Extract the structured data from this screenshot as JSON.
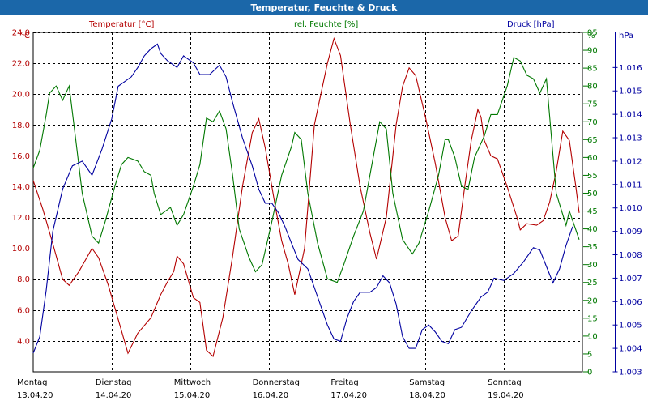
{
  "window": {
    "title": "Temperatur, Feuchte & Druck"
  },
  "colors": {
    "temperature": "#b40000",
    "humidity": "#007800",
    "pressure": "#0000a0",
    "titlebar": "#1b67a9",
    "grid": "#000000"
  },
  "chart_data": {
    "type": "line",
    "title": "Temperatur, Feuchte & Druck",
    "grid": true,
    "x": {
      "range": [
        "13.04.20 00:00",
        "20.04.20 00:00"
      ],
      "labels": [
        {
          "day": "Montag",
          "date": "13.04.20"
        },
        {
          "day": "Dienstag",
          "date": "14.04.20"
        },
        {
          "day": "Mittwoch",
          "date": "15.04.20"
        },
        {
          "day": "Donnerstag",
          "date": "16.04.20"
        },
        {
          "day": "Freitag",
          "date": "17.04.20"
        },
        {
          "day": "Samstag",
          "date": "18.04.20"
        },
        {
          "day": "Sonntag",
          "date": "19.04.20"
        }
      ]
    },
    "axes": {
      "temperature": {
        "unit": "°C",
        "ylim": [
          2.0,
          24.0
        ],
        "ticks": [
          "4.0",
          "6.0",
          "8.0",
          "10.0",
          "12.0",
          "14.0",
          "16.0",
          "18.0",
          "20.0",
          "22.0",
          "24.0"
        ]
      },
      "humidity": {
        "unit": "%",
        "ylim": [
          0,
          95
        ],
        "ticks": [
          "0",
          "5",
          "10",
          "15",
          "20",
          "25",
          "30",
          "35",
          "40",
          "45",
          "50",
          "55",
          "60",
          "65",
          "70",
          "75",
          "80",
          "85",
          "90",
          "95"
        ]
      },
      "pressure": {
        "unit": "hPa",
        "ylim": [
          1.003,
          1.0175
        ],
        "ticks": [
          "1.003",
          "1.004",
          "1.005",
          "1.006",
          "1.007",
          "1.008",
          "1.009",
          "1.010",
          "1.011",
          "1.012",
          "1.013",
          "1.014",
          "1.015",
          "1.016"
        ]
      }
    },
    "series": [
      {
        "name": "Temperatur [°C]",
        "axis": "temperature",
        "points": [
          [
            "13.04.20 00:00",
            14.4
          ],
          [
            "13.04.20 03:00",
            12.5
          ],
          [
            "13.04.20 06:00",
            10.3
          ],
          [
            "13.04.20 09:00",
            8.0
          ],
          [
            "13.04.20 11:00",
            7.6
          ],
          [
            "13.04.20 14:00",
            8.5
          ],
          [
            "13.04.20 18:00",
            10.0
          ],
          [
            "13.04.20 20:00",
            9.4
          ],
          [
            "13.04.20 23:00",
            7.6
          ],
          [
            "14.04.20 02:00",
            5.4
          ],
          [
            "14.04.20 05:00",
            3.2
          ],
          [
            "14.04.20 08:00",
            4.5
          ],
          [
            "14.04.20 12:00",
            5.5
          ],
          [
            "14.04.20 15:00",
            7.0
          ],
          [
            "14.04.20 17:00",
            7.8
          ],
          [
            "14.04.20 19:00",
            8.5
          ],
          [
            "14.04.20 20:00",
            9.5
          ],
          [
            "14.04.20 22:00",
            9.0
          ],
          [
            "15.04.20 01:00",
            6.8
          ],
          [
            "15.04.20 03:00",
            6.5
          ],
          [
            "15.04.20 05:00",
            3.4
          ],
          [
            "15.04.20 07:00",
            3.0
          ],
          [
            "15.04.20 10:00",
            5.5
          ],
          [
            "15.04.20 13:00",
            9.5
          ],
          [
            "15.04.20 16:00",
            14.0
          ],
          [
            "15.04.20 19:00",
            17.5
          ],
          [
            "15.04.20 21:00",
            18.4
          ],
          [
            "15.04.20 23:00",
            16.5
          ],
          [
            "16.04.20 02:00",
            12.8
          ],
          [
            "16.04.20 04:00",
            10.5
          ],
          [
            "16.04.20 06:00",
            9.0
          ],
          [
            "16.04.20 08:00",
            7.0
          ],
          [
            "16.04.20 11:00",
            10.0
          ],
          [
            "16.04.20 14:00",
            18.0
          ],
          [
            "16.04.20 16:00",
            20.0
          ],
          [
            "16.04.20 18:00",
            22.0
          ],
          [
            "16.04.20 20:00",
            23.6
          ],
          [
            "16.04.20 22:00",
            22.5
          ],
          [
            "17.04.20 01:00",
            18.0
          ],
          [
            "17.04.20 04:00",
            14.0
          ],
          [
            "17.04.20 07:00",
            11.0
          ],
          [
            "17.04.20 09:00",
            9.3
          ],
          [
            "17.04.20 12:00",
            12.0
          ],
          [
            "17.04.20 15:00",
            18.0
          ],
          [
            "17.04.20 17:00",
            20.5
          ],
          [
            "17.04.20 19:00",
            21.7
          ],
          [
            "17.04.20 21:00",
            21.2
          ],
          [
            "18.04.20 00:00",
            18.5
          ],
          [
            "18.04.20 03:00",
            15.5
          ],
          [
            "18.04.20 06:00",
            12.0
          ],
          [
            "18.04.20 08:00",
            10.5
          ],
          [
            "18.04.20 10:00",
            10.8
          ],
          [
            "18.04.20 12:00",
            14.0
          ],
          [
            "18.04.20 14:00",
            17.0
          ],
          [
            "18.04.20 16:00",
            19.0
          ],
          [
            "18.04.20 17:00",
            18.5
          ],
          [
            "18.04.20 18:00",
            17.0
          ],
          [
            "18.04.20 20:00",
            16.0
          ],
          [
            "18.04.20 22:00",
            15.8
          ],
          [
            "19.04.20 01:00",
            14.0
          ],
          [
            "19.04.20 04:00",
            12.0
          ],
          [
            "19.04.20 05:00",
            11.2
          ],
          [
            "19.04.20 07:00",
            11.6
          ],
          [
            "19.04.20 10:00",
            11.5
          ],
          [
            "19.04.20 12:00",
            11.8
          ],
          [
            "19.04.20 14:00",
            13.0
          ],
          [
            "19.04.20 16:00",
            15.0
          ],
          [
            "19.04.20 18:00",
            17.6
          ],
          [
            "19.04.20 20:00",
            17.0
          ],
          [
            "19.04.20 22:00",
            14.0
          ],
          [
            "19.04.20 23:00",
            12.3
          ]
        ]
      },
      {
        "name": "rel. Feuchte [%]",
        "axis": "humidity",
        "points": [
          [
            "13.04.20 00:00",
            57
          ],
          [
            "13.04.20 02:00",
            62
          ],
          [
            "13.04.20 04:00",
            72
          ],
          [
            "13.04.20 05:00",
            78
          ],
          [
            "13.04.20 07:00",
            80
          ],
          [
            "13.04.20 09:00",
            76
          ],
          [
            "13.04.20 11:00",
            80
          ],
          [
            "13.04.20 13:00",
            65
          ],
          [
            "13.04.20 15:00",
            50
          ],
          [
            "13.04.20 18:00",
            38
          ],
          [
            "13.04.20 20:00",
            36
          ],
          [
            "13.04.20 22:00",
            42
          ],
          [
            "14.04.20 01:00",
            52
          ],
          [
            "14.04.20 03:00",
            58
          ],
          [
            "14.04.20 05:00",
            60
          ],
          [
            "14.04.20 08:00",
            59
          ],
          [
            "14.04.20 10:00",
            56
          ],
          [
            "14.04.20 12:00",
            55
          ],
          [
            "14.04.20 13:00",
            50
          ],
          [
            "14.04.20 15:00",
            44
          ],
          [
            "14.04.20 18:00",
            46
          ],
          [
            "14.04.20 20:00",
            41
          ],
          [
            "14.04.20 22:00",
            44
          ],
          [
            "15.04.20 01:00",
            52
          ],
          [
            "15.04.20 03:00",
            58
          ],
          [
            "15.04.20 05:00",
            71
          ],
          [
            "15.04.20 07:00",
            70
          ],
          [
            "15.04.20 09:00",
            73
          ],
          [
            "15.04.20 11:00",
            68
          ],
          [
            "15.04.20 13:00",
            55
          ],
          [
            "15.04.20 15:00",
            40
          ],
          [
            "15.04.20 18:00",
            32
          ],
          [
            "15.04.20 20:00",
            28
          ],
          [
            "15.04.20 22:00",
            30
          ],
          [
            "16.04.20 01:00",
            42
          ],
          [
            "16.04.20 04:00",
            55
          ],
          [
            "16.04.20 07:00",
            63
          ],
          [
            "16.04.20 08:00",
            67
          ],
          [
            "16.04.20 10:00",
            65
          ],
          [
            "16.04.20 12:00",
            50
          ],
          [
            "16.04.20 15:00",
            36
          ],
          [
            "16.04.20 18:00",
            26
          ],
          [
            "16.04.20 21:00",
            25
          ],
          [
            "16.04.20 23:00",
            30
          ],
          [
            "17.04.20 02:00",
            38
          ],
          [
            "17.04.20 05:00",
            45
          ],
          [
            "17.04.20 08:00",
            60
          ],
          [
            "17.04.20 10:00",
            70
          ],
          [
            "17.04.20 12:00",
            68
          ],
          [
            "17.04.20 14:00",
            50
          ],
          [
            "17.04.20 17:00",
            37
          ],
          [
            "17.04.20 20:00",
            33
          ],
          [
            "17.04.20 22:00",
            36
          ],
          [
            "18.04.20 01:00",
            45
          ],
          [
            "18.04.20 04:00",
            55
          ],
          [
            "18.04.20 06:00",
            65
          ],
          [
            "18.04.20 07:00",
            65
          ],
          [
            "18.04.20 09:00",
            60
          ],
          [
            "18.04.20 11:00",
            52
          ],
          [
            "18.04.20 13:00",
            51
          ],
          [
            "18.04.20 15:00",
            60
          ],
          [
            "18.04.20 18:00",
            66
          ],
          [
            "18.04.20 20:00",
            72
          ],
          [
            "18.04.20 22:00",
            72
          ],
          [
            "19.04.20 01:00",
            80
          ],
          [
            "19.04.20 03:00",
            88
          ],
          [
            "19.04.20 05:00",
            87
          ],
          [
            "19.04.20 07:00",
            83
          ],
          [
            "19.04.20 09:00",
            82
          ],
          [
            "19.04.20 11:00",
            78
          ],
          [
            "19.04.20 13:00",
            82
          ],
          [
            "19.04.20 16:00",
            50
          ],
          [
            "19.04.20 19:00",
            41
          ],
          [
            "19.04.20 20:00",
            45
          ],
          [
            "19.04.20 23:00",
            37
          ]
        ]
      },
      {
        "name": "Druck [hPa]",
        "axis": "pressure",
        "points": [
          [
            "13.04.20 00:00",
            1.0038
          ],
          [
            "13.04.20 02:00",
            1.0045
          ],
          [
            "13.04.20 04:00",
            1.0065
          ],
          [
            "13.04.20 06:00",
            1.009
          ],
          [
            "13.04.20 09:00",
            1.0108
          ],
          [
            "13.04.20 12:00",
            1.0118
          ],
          [
            "13.04.20 15:00",
            1.012
          ],
          [
            "13.04.20 18:00",
            1.0114
          ],
          [
            "13.04.20 21:00",
            1.0125
          ],
          [
            "14.04.20 00:00",
            1.0138
          ],
          [
            "14.04.20 02:00",
            1.0152
          ],
          [
            "14.04.20 04:00",
            1.0154
          ],
          [
            "14.04.20 06:00",
            1.0156
          ],
          [
            "14.04.20 08:00",
            1.016
          ],
          [
            "14.04.20 10:00",
            1.0165
          ],
          [
            "14.04.20 12:00",
            1.0168
          ],
          [
            "14.04.20 14:00",
            1.017
          ],
          [
            "14.04.20 15:00",
            1.0166
          ],
          [
            "14.04.20 17:00",
            1.0163
          ],
          [
            "14.04.20 20:00",
            1.016
          ],
          [
            "14.04.20 22:00",
            1.0165
          ],
          [
            "15.04.20 01:00",
            1.0162
          ],
          [
            "15.04.20 03:00",
            1.0157
          ],
          [
            "15.04.20 06:00",
            1.0157
          ],
          [
            "15.04.20 09:00",
            1.0161
          ],
          [
            "15.04.20 11:00",
            1.0156
          ],
          [
            "15.04.20 13:00",
            1.0145
          ],
          [
            "15.04.20 16:00",
            1.013
          ],
          [
            "15.04.20 19:00",
            1.0118
          ],
          [
            "15.04.20 21:00",
            1.0108
          ],
          [
            "15.04.20 23:00",
            1.0102
          ],
          [
            "16.04.20 01:00",
            1.0102
          ],
          [
            "16.04.20 03:00",
            1.0098
          ],
          [
            "16.04.20 05:00",
            1.0092
          ],
          [
            "16.04.20 07:00",
            1.0085
          ],
          [
            "16.04.20 09:00",
            1.0078
          ],
          [
            "16.04.20 12:00",
            1.0074
          ],
          [
            "16.04.20 15:00",
            1.0062
          ],
          [
            "16.04.20 18:00",
            1.005
          ],
          [
            "16.04.20 20:00",
            1.0044
          ],
          [
            "16.04.20 22:00",
            1.0043
          ],
          [
            "17.04.20 00:00",
            1.0053
          ],
          [
            "17.04.20 02:00",
            1.006
          ],
          [
            "17.04.20 04:00",
            1.0064
          ],
          [
            "17.04.20 07:00",
            1.0064
          ],
          [
            "17.04.20 09:00",
            1.0066
          ],
          [
            "17.04.20 11:00",
            1.0071
          ],
          [
            "17.04.20 13:00",
            1.0068
          ],
          [
            "17.04.20 15:00",
            1.0059
          ],
          [
            "17.04.20 17:00",
            1.0045
          ],
          [
            "17.04.20 19:00",
            1.004
          ],
          [
            "17.04.20 21:00",
            1.004
          ],
          [
            "17.04.20 23:00",
            1.0048
          ],
          [
            "18.04.20 01:00",
            1.005
          ],
          [
            "18.04.20 03:00",
            1.0047
          ],
          [
            "18.04.20 05:00",
            1.0043
          ],
          [
            "18.04.20 07:00",
            1.0042
          ],
          [
            "18.04.20 09:00",
            1.0048
          ],
          [
            "18.04.20 11:00",
            1.0049
          ],
          [
            "18.04.20 14:00",
            1.0056
          ],
          [
            "18.04.20 17:00",
            1.0062
          ],
          [
            "18.04.20 19:00",
            1.0064
          ],
          [
            "18.04.20 21:00",
            1.007
          ],
          [
            "19.04.20 00:00",
            1.0069
          ],
          [
            "19.04.20 03:00",
            1.0072
          ],
          [
            "19.04.20 06:00",
            1.0077
          ],
          [
            "19.04.20 09:00",
            1.0083
          ],
          [
            "19.04.20 11:00",
            1.0082
          ],
          [
            "19.04.20 13:00",
            1.0075
          ],
          [
            "19.04.20 15:00",
            1.0068
          ],
          [
            "19.04.20 17:00",
            1.0074
          ],
          [
            "19.04.20 19:00",
            1.0084
          ],
          [
            "19.04.20 21:00",
            1.0092
          ]
        ]
      }
    ]
  }
}
